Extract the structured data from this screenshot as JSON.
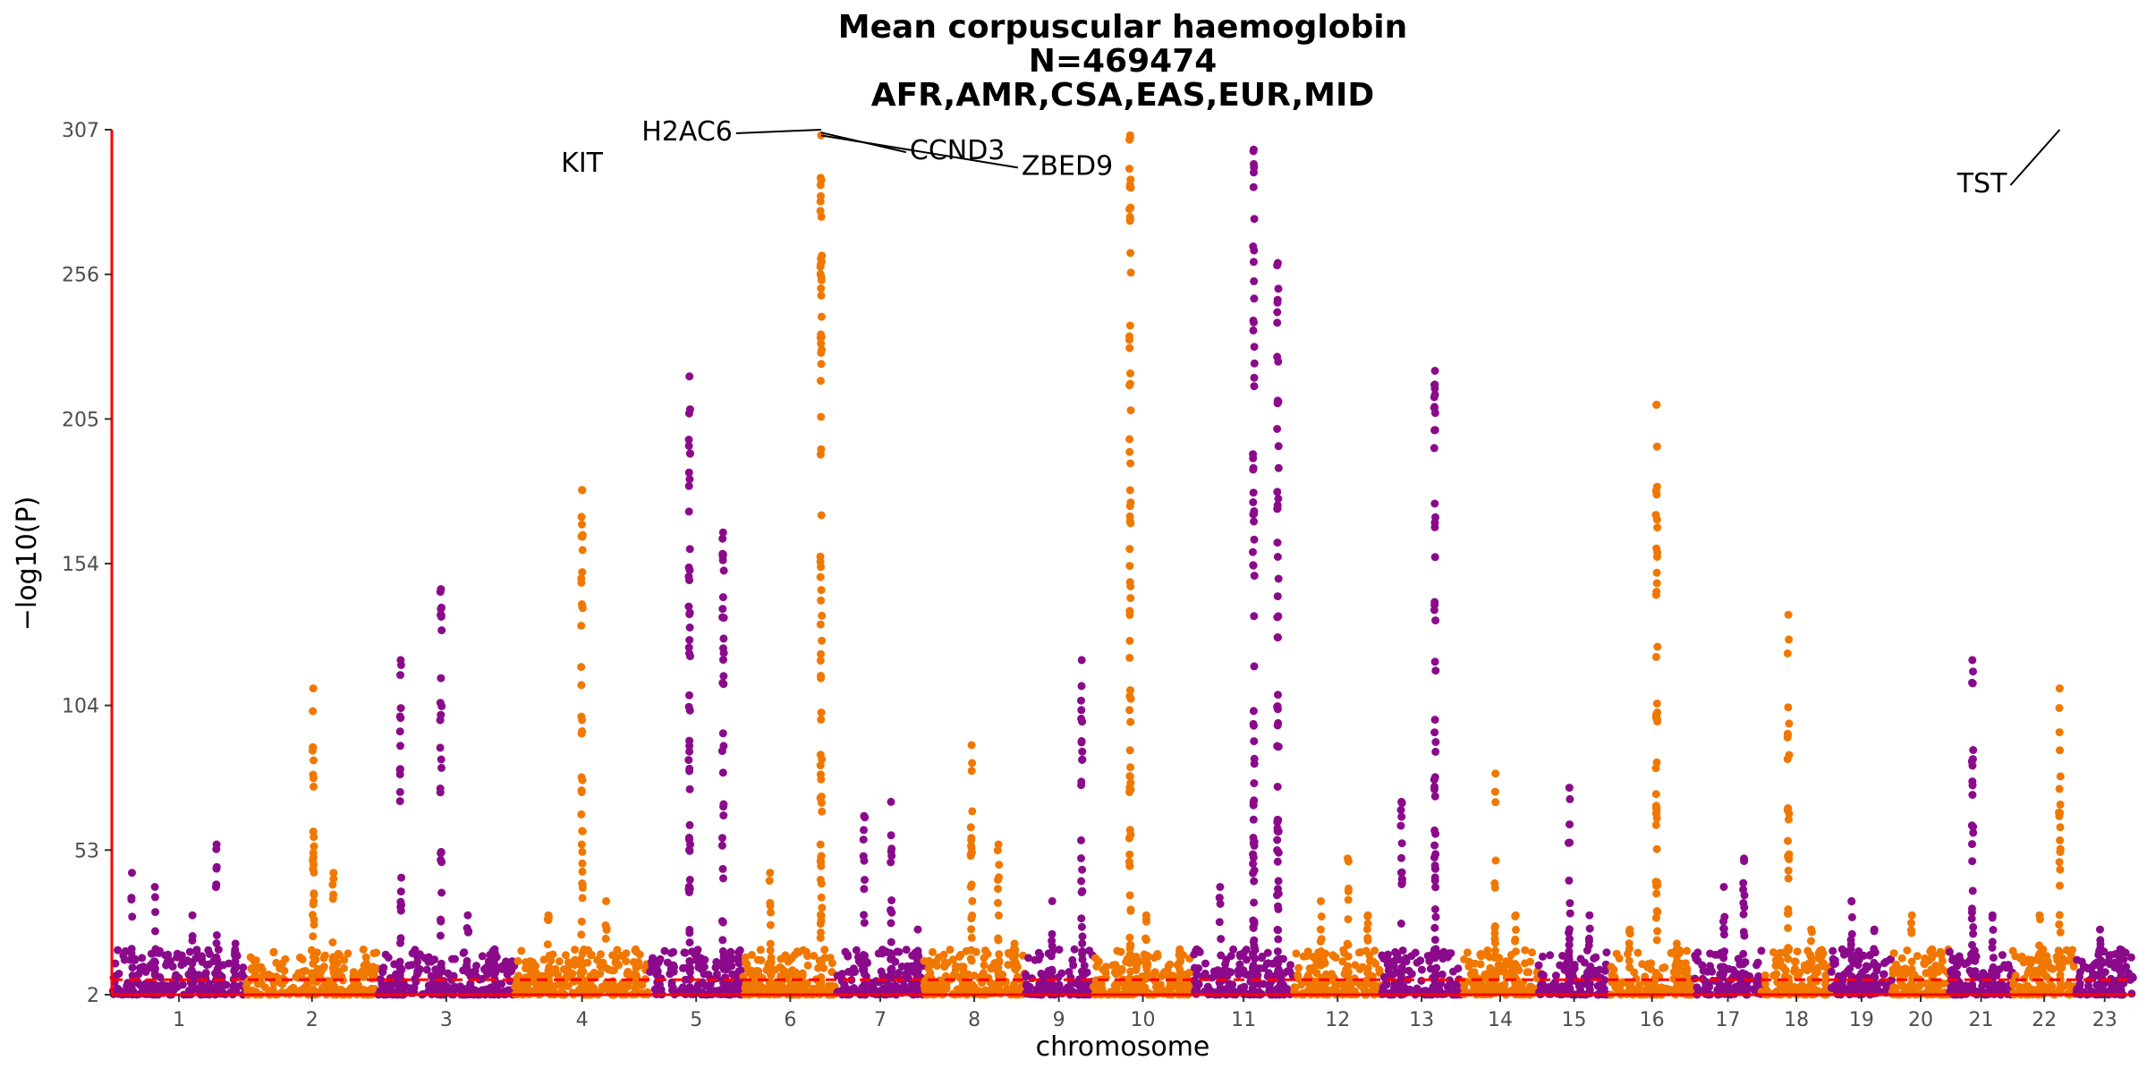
{
  "chart_data": {
    "type": "scatter",
    "subtype": "manhattan",
    "title": [
      "Mean corpuscular haemoglobin",
      "N=469474",
      "AFR,AMR,CSA,EAS,EUR,MID"
    ],
    "xlabel": "chromosome",
    "ylabel": "−log10(P)",
    "ylim": [
      2,
      307
    ],
    "yticks": [
      2,
      53,
      104,
      154,
      205,
      256,
      307
    ],
    "significance_threshold": 7.3,
    "colors": {
      "odd": "#8B0A8B",
      "even": "#F07800",
      "axis": "#FF0000",
      "threshold": "#FF0000"
    },
    "chromosomes": [
      {
        "label": "1",
        "start": 0,
        "end": 100,
        "peaks": [
          [
            15,
            45
          ],
          [
            32,
            40
          ],
          [
            60,
            30
          ],
          [
            78,
            55
          ],
          [
            92,
            20
          ]
        ]
      },
      {
        "label": "2",
        "start": 100,
        "end": 198,
        "peaks": [
          [
            150,
            110
          ],
          [
            165,
            45
          ],
          [
            180,
            10
          ]
        ]
      },
      {
        "label": "3",
        "start": 198,
        "end": 300,
        "peaks": [
          [
            215,
            120
          ],
          [
            245,
            145
          ],
          [
            265,
            30
          ],
          [
            285,
            18
          ]
        ]
      },
      {
        "label": "4",
        "start": 300,
        "end": 400,
        "peaks": [
          [
            325,
            30
          ],
          [
            350,
            180
          ],
          [
            368,
            35
          ],
          [
            390,
            18
          ]
        ]
      },
      {
        "label": "5",
        "start": 400,
        "end": 470,
        "peaks": [
          [
            430,
            220
          ],
          [
            455,
            165
          ]
        ]
      },
      {
        "label": "6",
        "start": 470,
        "end": 540,
        "peaks": [
          [
            490,
            45
          ],
          [
            528,
            305
          ]
        ]
      },
      {
        "label": "7",
        "start": 540,
        "end": 604,
        "peaks": [
          [
            560,
            65
          ],
          [
            580,
            70
          ],
          [
            600,
            25
          ]
        ]
      },
      {
        "label": "8",
        "start": 604,
        "end": 680,
        "peaks": [
          [
            640,
            90
          ],
          [
            660,
            55
          ],
          [
            672,
            20
          ]
        ]
      },
      {
        "label": "9",
        "start": 680,
        "end": 730,
        "peaks": [
          [
            700,
            35
          ],
          [
            722,
            120
          ]
        ]
      },
      {
        "label": "10",
        "start": 730,
        "end": 805,
        "peaks": [
          [
            758,
            305
          ],
          [
            770,
            30
          ],
          [
            795,
            18
          ]
        ]
      },
      {
        "label": "11",
        "start": 805,
        "end": 880,
        "peaks": [
          [
            825,
            40
          ],
          [
            850,
            300
          ],
          [
            868,
            260
          ]
        ]
      },
      {
        "label": "12",
        "start": 880,
        "end": 945,
        "peaks": [
          [
            900,
            35
          ],
          [
            920,
            50
          ],
          [
            935,
            30
          ]
        ]
      },
      {
        "label": "13",
        "start": 945,
        "end": 1005,
        "peaks": [
          [
            960,
            70
          ],
          [
            985,
            222
          ]
        ]
      },
      {
        "label": "14",
        "start": 1005,
        "end": 1062,
        "peaks": [
          [
            1030,
            80
          ],
          [
            1045,
            30
          ]
        ]
      },
      {
        "label": "15",
        "start": 1062,
        "end": 1115,
        "peaks": [
          [
            1085,
            75
          ],
          [
            1100,
            30
          ]
        ]
      },
      {
        "label": "16",
        "start": 1115,
        "end": 1178,
        "peaks": [
          [
            1130,
            25
          ],
          [
            1150,
            210
          ],
          [
            1165,
            20
          ]
        ]
      },
      {
        "label": "17",
        "start": 1178,
        "end": 1228,
        "peaks": [
          [
            1200,
            40
          ],
          [
            1215,
            50
          ]
        ]
      },
      {
        "label": "18",
        "start": 1228,
        "end": 1280,
        "peaks": [
          [
            1248,
            136
          ],
          [
            1265,
            25
          ]
        ]
      },
      {
        "label": "19",
        "start": 1280,
        "end": 1325,
        "peaks": [
          [
            1295,
            35
          ],
          [
            1312,
            25
          ]
        ]
      },
      {
        "label": "20",
        "start": 1325,
        "end": 1368,
        "peaks": [
          [
            1340,
            30
          ],
          [
            1355,
            18
          ]
        ]
      },
      {
        "label": "21",
        "start": 1368,
        "end": 1415,
        "peaks": [
          [
            1385,
            120
          ],
          [
            1400,
            30
          ]
        ]
      },
      {
        "label": "22",
        "start": 1415,
        "end": 1462,
        "peaks": [
          [
            1435,
            30
          ],
          [
            1450,
            110
          ]
        ]
      },
      {
        "label": "23",
        "start": 1462,
        "end": 1505,
        "peaks": [
          [
            1480,
            25
          ],
          [
            1495,
            18
          ]
        ]
      }
    ],
    "annotations": [
      {
        "label": "KIT",
        "x": 350,
        "y": 301
      },
      {
        "label": "H2AC6",
        "x": 528,
        "y": 307
      },
      {
        "label": "CCND3",
        "x": 528,
        "y": 306
      },
      {
        "label": "ZBED9",
        "x": 528,
        "y": 305
      },
      {
        "label": "TST",
        "x": 1450,
        "y": 307
      }
    ]
  }
}
